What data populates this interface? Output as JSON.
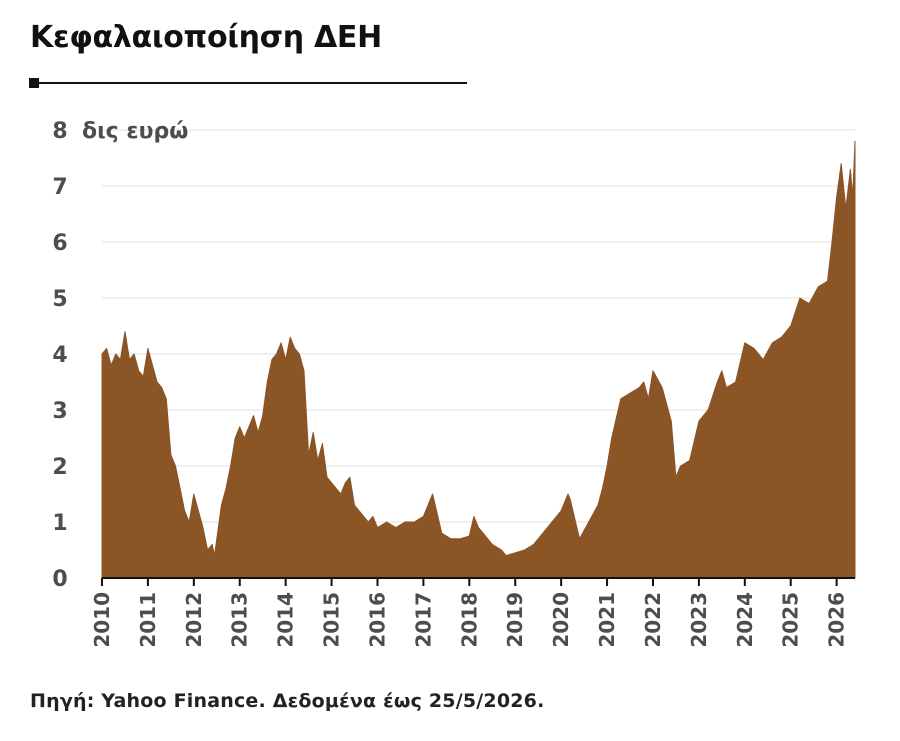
{
  "header": {
    "title": "Κεφαλαιοποίηση ΔΕΗ"
  },
  "footer": {
    "source": "Πηγή: Yahoo Finance. Δεδομένα έως 25/5/2026."
  },
  "colors": {
    "area_fill": "#8b5526",
    "gridline": "#e6e6e6",
    "axis": "#111111",
    "text": "#4d4d4d"
  },
  "chart_data": {
    "type": "area",
    "title": "Κεφαλαιοποίηση ΔΕΗ",
    "unit_label": "δις ευρώ",
    "xlabel": "",
    "ylabel": "δις ευρώ",
    "ylim": [
      0,
      8
    ],
    "y_ticks": [
      0,
      1,
      2,
      3,
      4,
      5,
      6,
      7,
      8
    ],
    "x_ticks": [
      "2010",
      "2011",
      "2012",
      "2013",
      "2014",
      "2015",
      "2016",
      "2017",
      "2018",
      "2019",
      "2020",
      "2021",
      "2022",
      "2023",
      "2024",
      "2025",
      "2026"
    ],
    "xlim": [
      2010.0,
      2026.4
    ],
    "grid": true,
    "series": [
      {
        "x": [
          2010.0,
          2010.1,
          2010.2,
          2010.3,
          2010.4,
          2010.5,
          2010.6,
          2010.7,
          2010.8,
          2010.9,
          2011.0,
          2011.1,
          2011.2,
          2011.3,
          2011.4,
          2011.5,
          2011.6,
          2011.7,
          2011.8,
          2011.9,
          2012.0,
          2012.1,
          2012.2,
          2012.3,
          2012.4,
          2012.45,
          2012.5,
          2012.6,
          2012.7,
          2012.8,
          2012.9,
          2013.0,
          2013.1,
          2013.2,
          2013.3,
          2013.4,
          2013.5,
          2013.6,
          2013.7,
          2013.8,
          2013.9,
          2014.0,
          2014.1,
          2014.2,
          2014.3,
          2014.4,
          2014.5,
          2014.6,
          2014.7,
          2014.8,
          2014.9,
          2015.0,
          2015.1,
          2015.2,
          2015.3,
          2015.4,
          2015.5,
          2015.6,
          2015.7,
          2015.8,
          2015.9,
          2016.0,
          2016.2,
          2016.4,
          2016.6,
          2016.8,
          2017.0,
          2017.2,
          2017.4,
          2017.5,
          2017.6,
          2017.8,
          2018.0,
          2018.1,
          2018.2,
          2018.3,
          2018.5,
          2018.7,
          2018.8,
          2019.0,
          2019.2,
          2019.4,
          2019.6,
          2019.8,
          2020.0,
          2020.1,
          2020.15,
          2020.2,
          2020.4,
          2020.6,
          2020.8,
          2020.9,
          2021.0,
          2021.1,
          2021.3,
          2021.5,
          2021.7,
          2021.8,
          2021.9,
          2022.0,
          2022.2,
          2022.4,
          2022.5,
          2022.6,
          2022.8,
          2023.0,
          2023.2,
          2023.4,
          2023.5,
          2023.6,
          2023.8,
          2024.0,
          2024.2,
          2024.4,
          2024.6,
          2024.8,
          2025.0,
          2025.2,
          2025.4,
          2025.6,
          2025.8,
          2025.9,
          2026.0,
          2026.1,
          2026.2,
          2026.3,
          2026.35,
          2026.4
        ],
        "y": [
          4.0,
          4.1,
          3.8,
          4.0,
          3.9,
          4.4,
          3.9,
          4.0,
          3.7,
          3.6,
          4.1,
          3.8,
          3.5,
          3.4,
          3.2,
          2.2,
          2.0,
          1.6,
          1.2,
          1.0,
          1.5,
          1.2,
          0.9,
          0.5,
          0.6,
          0.4,
          0.7,
          1.3,
          1.6,
          2.0,
          2.5,
          2.7,
          2.5,
          2.7,
          2.9,
          2.6,
          2.9,
          3.5,
          3.9,
          4.0,
          4.2,
          3.9,
          4.3,
          4.1,
          4.0,
          3.7,
          2.2,
          2.6,
          2.1,
          2.4,
          1.8,
          1.7,
          1.6,
          1.5,
          1.7,
          1.8,
          1.3,
          1.2,
          1.1,
          1.0,
          1.1,
          0.9,
          1.0,
          0.9,
          1.0,
          1.0,
          1.1,
          1.5,
          0.8,
          0.75,
          0.7,
          0.7,
          0.75,
          1.1,
          0.9,
          0.8,
          0.6,
          0.5,
          0.4,
          0.45,
          0.5,
          0.6,
          0.8,
          1.0,
          1.2,
          1.4,
          1.5,
          1.4,
          0.7,
          1.0,
          1.3,
          1.6,
          2.0,
          2.5,
          3.2,
          3.3,
          3.4,
          3.5,
          3.2,
          3.7,
          3.4,
          2.8,
          1.8,
          2.0,
          2.1,
          2.8,
          3.0,
          3.5,
          3.7,
          3.4,
          3.5,
          4.2,
          4.1,
          3.9,
          4.2,
          4.3,
          4.5,
          5.0,
          4.9,
          5.2,
          5.3,
          6.0,
          6.8,
          7.4,
          6.6,
          7.3,
          6.8,
          7.8
        ]
      }
    ]
  }
}
